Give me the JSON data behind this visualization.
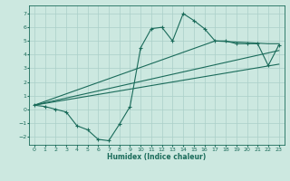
{
  "xlabel": "Humidex (Indice chaleur)",
  "bg_color": "#cce8e0",
  "grid_color": "#aacfc8",
  "line_color": "#1a6b5a",
  "xlim": [
    -0.5,
    23.5
  ],
  "ylim": [
    -2.6,
    7.6
  ],
  "xticks": [
    0,
    1,
    2,
    3,
    4,
    5,
    6,
    7,
    8,
    9,
    10,
    11,
    12,
    13,
    14,
    15,
    16,
    17,
    18,
    19,
    20,
    21,
    22,
    23
  ],
  "yticks": [
    -2,
    -1,
    0,
    1,
    2,
    3,
    4,
    5,
    6,
    7
  ],
  "line1_x": [
    0,
    1,
    2,
    3,
    4,
    5,
    6,
    7,
    8,
    9,
    10,
    11,
    12,
    13,
    14,
    15,
    16,
    17,
    18,
    19,
    20,
    21,
    22,
    23
  ],
  "line1_y": [
    0.3,
    0.2,
    0.0,
    -0.2,
    -1.2,
    -1.5,
    -2.2,
    -2.3,
    -1.1,
    0.2,
    4.5,
    5.9,
    6.0,
    5.0,
    7.0,
    6.5,
    5.9,
    5.0,
    5.0,
    4.8,
    4.8,
    4.8,
    3.2,
    4.7
  ],
  "line2_x": [
    0,
    17,
    22,
    23
  ],
  "line2_y": [
    0.3,
    5.0,
    4.8,
    4.8
  ],
  "line3_x": [
    0,
    23
  ],
  "line3_y": [
    0.3,
    3.3
  ],
  "line4_x": [
    0,
    23
  ],
  "line4_y": [
    0.3,
    4.3
  ],
  "figsize": [
    3.2,
    2.0
  ],
  "dpi": 100
}
